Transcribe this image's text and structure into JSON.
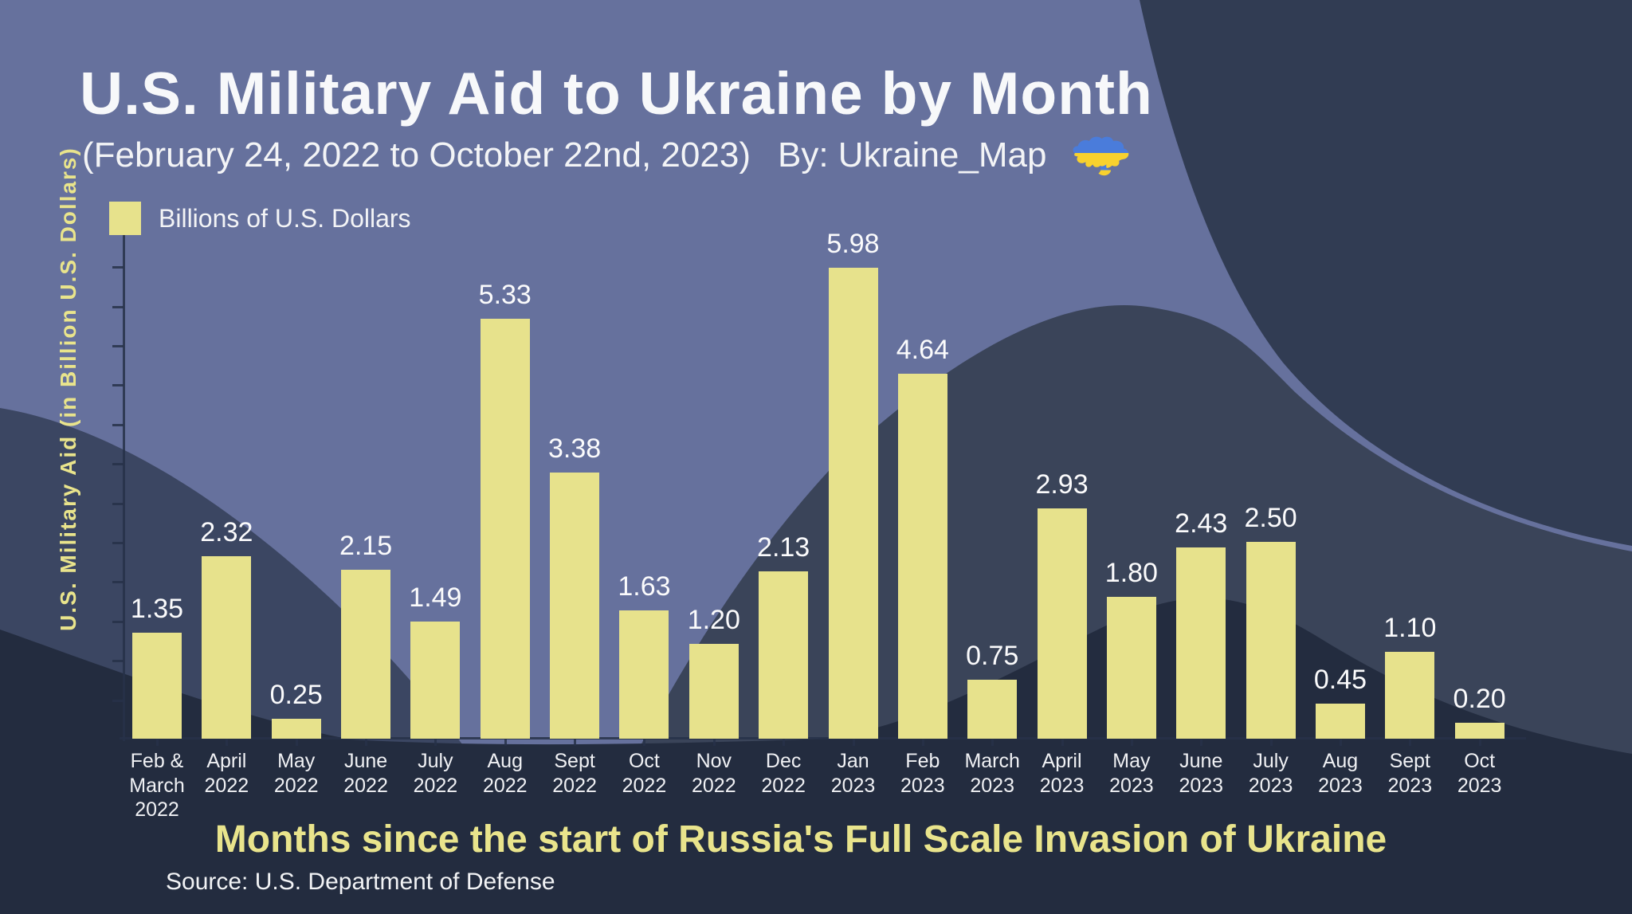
{
  "header": {
    "title": "U.S. Military Aid to Ukraine by Month",
    "subtitle": "(February 24, 2022 to October 22nd, 2023)",
    "byline": "By: Ukraine_Map",
    "byline_icon": "ukraine-map-icon"
  },
  "legend": {
    "label": "Billions of U.S. Dollars"
  },
  "chart_data": {
    "type": "bar",
    "title": "U.S. Military Aid to Ukraine by Month",
    "subtitle": "(February 24, 2022 to October 22nd, 2023)",
    "categories": [
      "Feb &\nMarch\n2022",
      "April\n2022",
      "May\n2022",
      "June\n2022",
      "July\n2022",
      "Aug\n2022",
      "Sept\n2022",
      "Oct\n2022",
      "Nov\n2022",
      "Dec\n2022",
      "Jan\n2023",
      "Feb\n2023",
      "March\n2023",
      "April\n2023",
      "May\n2023",
      "June\n2023",
      "July\n2023",
      "Aug\n2023",
      "Sept\n2023",
      "Oct\n2023"
    ],
    "values": [
      1.35,
      2.32,
      0.25,
      2.15,
      1.49,
      5.33,
      3.38,
      1.63,
      1.2,
      2.13,
      5.98,
      4.64,
      0.75,
      2.93,
      1.8,
      2.43,
      2.5,
      0.45,
      1.1,
      0.2
    ],
    "value_labels": [
      "1.35",
      "2.32",
      "0.25",
      "2.15",
      "1.49",
      "5.33",
      "3.38",
      "1.63",
      "1.20",
      "2.13",
      "5.98",
      "4.64",
      "0.75",
      "2.93",
      "1.80",
      "2.43",
      "2.50",
      "0.45",
      "1.10",
      "0.20"
    ],
    "series_name": "Billions of U.S. Dollars",
    "xlabel": "Months since the start of Russia's Full Scale Invasion of Ukraine",
    "ylabel": "U.S. Military Aid (in Billion U.S. Dollars)",
    "ylim": [
      0,
      6.5
    ],
    "y_tick_step": 0.5,
    "grid": false,
    "legend_position": "top-left"
  },
  "source": "Source: U.S. Department of Defense",
  "colors": {
    "background": "#66719D",
    "wave_right_dark": "#313C53",
    "wave_left_mid": "#3B4662",
    "wave_center_mid": "#3A4459",
    "wave_bottom_darkest": "#232C3F",
    "bar": "#E7E28C",
    "accent_text": "#E9E48C",
    "white_text": "#F3F4F6",
    "flag_blue": "#4A7CDB",
    "flag_yellow": "#F8D12E"
  }
}
